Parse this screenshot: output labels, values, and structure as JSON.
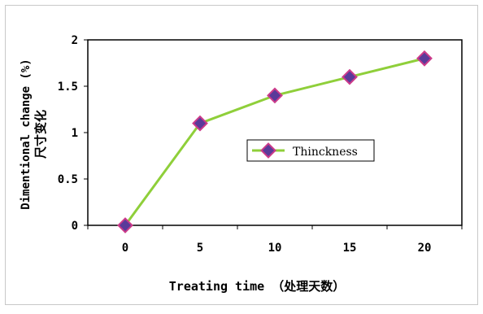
{
  "chart_data": {
    "type": "line",
    "title": "",
    "xlabel": "Treating time （处理天数）",
    "ylabel": "Dimentional change (%)",
    "ylabel_cn": "尺寸变化",
    "categories": [
      "0",
      "5",
      "10",
      "15",
      "20"
    ],
    "series": [
      {
        "name": "Thinckness",
        "values": [
          0,
          1.1,
          1.4,
          1.6,
          1.8
        ]
      }
    ],
    "ylim": [
      0,
      2
    ],
    "yticks": [
      "0",
      "0.5",
      "1",
      "1.5",
      "2"
    ],
    "grid": false,
    "legend_position": "right-middle",
    "colors": {
      "line": "#8fcf3a",
      "marker_fill": "#5a3a9a",
      "marker_edge": "#cc3a8a",
      "plot_bg": "#ffffff",
      "plot_border": "#000000"
    }
  }
}
